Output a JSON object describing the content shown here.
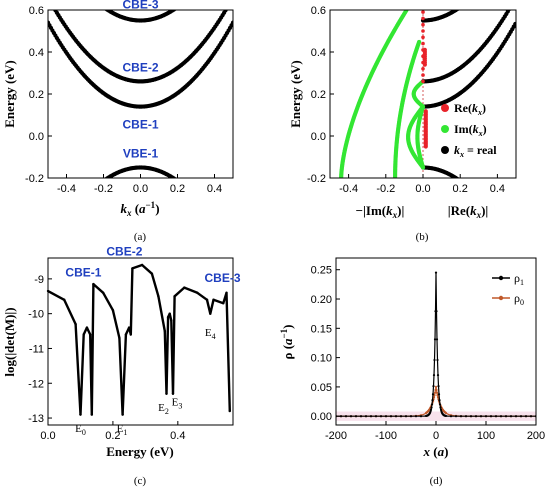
{
  "chart_data": [
    {
      "panel": "a",
      "type": "scatter",
      "caption": "(a)",
      "xlabel": "k_x (a^-1)",
      "ylabel": "Energy (eV)",
      "xlim": [
        -0.5,
        0.5
      ],
      "ylim": [
        -0.2,
        0.6
      ],
      "xticks": [
        "-0.4",
        "-0.2",
        "0.0",
        "0.2",
        "0.4"
      ],
      "yticks": [
        "-0.2",
        "0.0",
        "0.2",
        "0.4",
        "0.6"
      ],
      "bands": [
        {
          "name": "CBE-3",
          "min_energy": 0.55,
          "min_k": 0.0
        },
        {
          "name": "CBE-2",
          "min_energy": 0.26,
          "min_k": 0.0
        },
        {
          "name": "CBE-1",
          "min_energy": 0.14,
          "min_k": 0.0
        },
        {
          "name": "VBE-1",
          "max_energy": -0.15,
          "max_k": 0.0
        }
      ],
      "series_color": "#000000"
    },
    {
      "panel": "b",
      "type": "scatter",
      "caption": "(b)",
      "xlabel_left": "−|Im(k_x)|",
      "xlabel_right": "|Re(k_x)|",
      "ylabel": "Energy (eV)",
      "xlim": [
        -0.5,
        0.5
      ],
      "ylim": [
        -0.2,
        0.6
      ],
      "xticks": [
        "-0.4",
        "-0.2",
        "0.0",
        "0.2",
        "0.4"
      ],
      "yticks": [
        "-0.2",
        "0.0",
        "0.2",
        "0.4",
        "0.6"
      ],
      "legend": [
        {
          "label": "Re(k_x)",
          "color": "#e8232a"
        },
        {
          "label": "Im(k_x)",
          "color": "#33e633"
        },
        {
          "label": "k_x = real",
          "color": "#000000"
        }
      ],
      "legend_position": "right"
    },
    {
      "panel": "c",
      "type": "line",
      "caption": "(c)",
      "xlabel": "Energy (eV)",
      "ylabel": "log(|det(M)|)",
      "xlim": [
        0.0,
        0.57
      ],
      "ylim": [
        -13.2,
        -8.4
      ],
      "xticks": [
        "0.0",
        "0.2",
        "0.4"
      ],
      "yticks": [
        "-9",
        "-10",
        "-11",
        "-12",
        "-13"
      ],
      "band_labels": [
        {
          "text": "CBE-1",
          "x": 0.14
        },
        {
          "text": "CBE-2",
          "x": 0.26
        },
        {
          "text": "CBE-3",
          "x": 0.55
        }
      ],
      "dip_labels": [
        {
          "text": "E0",
          "x": 0.1
        },
        {
          "text": "E1",
          "x": 0.228
        },
        {
          "text": "E2",
          "x": 0.365
        },
        {
          "text": "E3",
          "x": 0.385
        },
        {
          "text": "E4",
          "x": 0.5
        }
      ],
      "curve": {
        "x": [
          0.0,
          0.05,
          0.085,
          0.1,
          0.11,
          0.12,
          0.13,
          0.135,
          0.14,
          0.17,
          0.2,
          0.22,
          0.23,
          0.24,
          0.25,
          0.255,
          0.26,
          0.29,
          0.32,
          0.34,
          0.36,
          0.365,
          0.37,
          0.375,
          0.38,
          0.385,
          0.39,
          0.42,
          0.46,
          0.49,
          0.5,
          0.51,
          0.54,
          0.55,
          0.56
        ],
        "y": [
          -9.35,
          -9.6,
          -10.3,
          -12.9,
          -10.6,
          -10.4,
          -10.6,
          -12.9,
          -9.15,
          -9.4,
          -9.9,
          -10.7,
          -12.9,
          -10.6,
          -10.4,
          -10.6,
          -8.7,
          -8.6,
          -8.85,
          -9.5,
          -10.5,
          -12.3,
          -10.1,
          -10.0,
          -10.2,
          -12.3,
          -9.5,
          -9.25,
          -9.4,
          -9.6,
          -10.0,
          -9.6,
          -9.7,
          -9.4,
          -12.8
        ]
      }
    },
    {
      "panel": "d",
      "type": "line",
      "caption": "(d)",
      "xlabel": "x (a)",
      "ylabel": "ρ (a^-1)",
      "xlim": [
        -200,
        200
      ],
      "ylim": [
        -0.015,
        0.27
      ],
      "xticks": [
        "-200",
        "-100",
        "0",
        "100",
        "200"
      ],
      "yticks": [
        "0.00",
        "0.05",
        "0.10",
        "0.15",
        "0.20",
        "0.25"
      ],
      "legend_position": "top-right",
      "series": [
        {
          "name": "ρ1",
          "color": "#000000",
          "peak": 0.245
        },
        {
          "name": "ρ0",
          "color": "#c0592a",
          "peak": 0.05
        }
      ]
    }
  ]
}
